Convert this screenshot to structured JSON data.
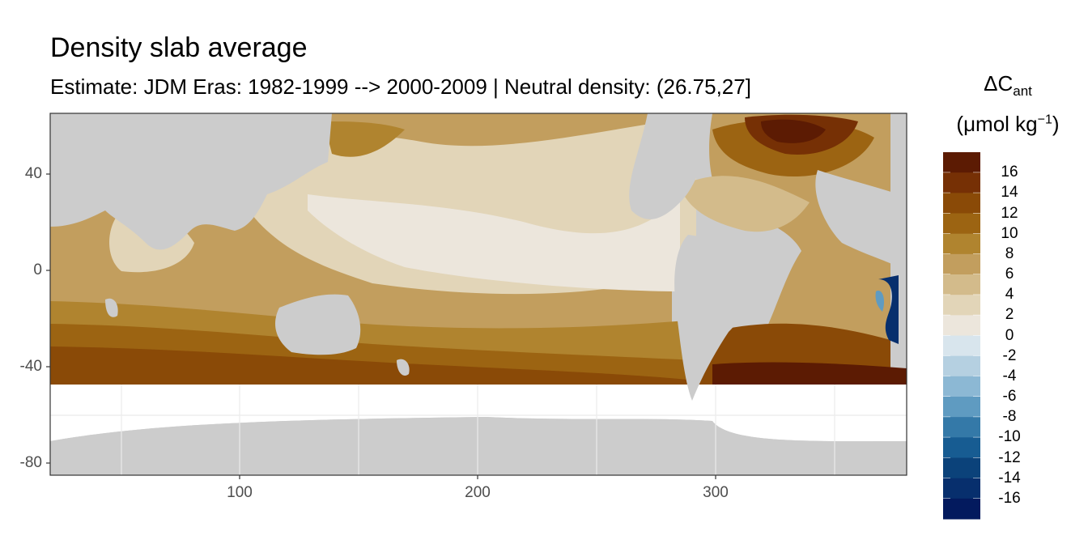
{
  "title": "Density slab average",
  "subtitle": "Estimate: JDM Eras: 1982-1999 --> 2000-2009 | Neutral density: (26.75,27]",
  "colors": {
    "land": "#cccccc",
    "missing": "#ffffff",
    "grid": "#ebebeb",
    "panel_border": "#333333"
  },
  "map": {
    "type": "map",
    "x_range": [
      20,
      380
    ],
    "y_range": [
      -85,
      63
    ],
    "x_ticks": [
      {
        "value": 100,
        "label": "100"
      },
      {
        "value": 200,
        "label": "200"
      },
      {
        "value": 300,
        "label": "300"
      }
    ],
    "y_ticks": [
      {
        "value": 40,
        "label": "40"
      },
      {
        "value": 0,
        "label": "0"
      },
      {
        "value": -40,
        "label": "-40"
      },
      {
        "value": -80,
        "label": "-80"
      }
    ]
  },
  "legend": {
    "title_main": "ΔC",
    "title_sub": "ant",
    "units_main": "(μmol kg",
    "units_sup": "−1",
    "units_end": ")",
    "bins": [
      {
        "color": "#5c1b03",
        "label": "16"
      },
      {
        "color": "#763005",
        "label": "14"
      },
      {
        "color": "#8a4a07",
        "label": "12"
      },
      {
        "color": "#9c6412",
        "label": "10"
      },
      {
        "color": "#b0842f",
        "label": "8"
      },
      {
        "color": "#c29e5e",
        "label": "6"
      },
      {
        "color": "#d3bb8b",
        "label": "4"
      },
      {
        "color": "#e2d5b8",
        "label": "2"
      },
      {
        "color": "#ece6dc",
        "label": "0"
      },
      {
        "color": "#d8e5ed",
        "label": "-2"
      },
      {
        "color": "#b5d0e1",
        "label": "-4"
      },
      {
        "color": "#8cb8d4",
        "label": "-6"
      },
      {
        "color": "#5f9bc1",
        "label": "-8"
      },
      {
        "color": "#3479a8",
        "label": "-10"
      },
      {
        "color": "#175c92",
        "label": "-12"
      },
      {
        "color": "#0b427a",
        "label": "-14"
      },
      {
        "color": "#072f6d",
        "label": "-16"
      },
      {
        "color": "#031a5e",
        "label": ""
      }
    ]
  }
}
